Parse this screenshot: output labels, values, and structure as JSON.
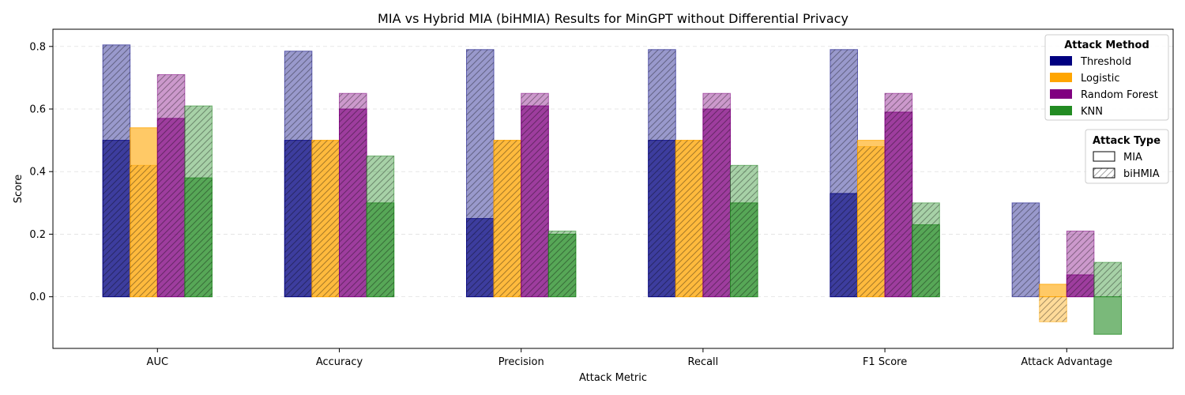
{
  "chart_data": {
    "type": "bar",
    "title": "MIA vs Hybrid MIA (biHMIA) Results for MinGPT without Differential Privacy",
    "xlabel": "Attack Metric",
    "ylabel": "Score",
    "ylim": [
      -0.165,
      0.855
    ],
    "yticks": [
      0.0,
      0.2,
      0.4,
      0.6,
      0.8
    ],
    "ytick_labels": [
      "0.0",
      "0.2",
      "0.4",
      "0.6",
      "0.8"
    ],
    "grid": "horizontal-dashed",
    "categories": [
      "AUC",
      "Accuracy",
      "Precision",
      "Recall",
      "F1 Score",
      "Attack Advantage"
    ],
    "series": [
      {
        "name": "Threshold",
        "color": "#000080",
        "mia": [
          0.5,
          0.5,
          0.25,
          0.5,
          0.33,
          0.0
        ],
        "bihmia": [
          0.805,
          0.785,
          0.79,
          0.79,
          0.79,
          0.3
        ]
      },
      {
        "name": "Logistic",
        "color": "#FFA500",
        "mia": [
          0.54,
          0.5,
          0.5,
          0.5,
          0.5,
          0.04
        ],
        "bihmia": [
          0.42,
          0.5,
          0.5,
          0.5,
          0.48,
          -0.08
        ]
      },
      {
        "name": "Random Forest",
        "color": "#800080",
        "mia": [
          0.57,
          0.6,
          0.61,
          0.6,
          0.59,
          0.07
        ],
        "bihmia": [
          0.71,
          0.65,
          0.65,
          0.65,
          0.65,
          0.21
        ]
      },
      {
        "name": "KNN",
        "color": "#228B22",
        "mia": [
          0.38,
          0.3,
          0.2,
          0.3,
          0.23,
          -0.12
        ],
        "bihmia": [
          0.61,
          0.45,
          0.21,
          0.42,
          0.3,
          0.11
        ]
      }
    ],
    "legend_method": {
      "title": "Attack Method",
      "placement": "top-right"
    },
    "legend_type": {
      "title": "Attack Type",
      "items": [
        "MIA",
        "biHMIA"
      ],
      "placement": "right"
    }
  }
}
